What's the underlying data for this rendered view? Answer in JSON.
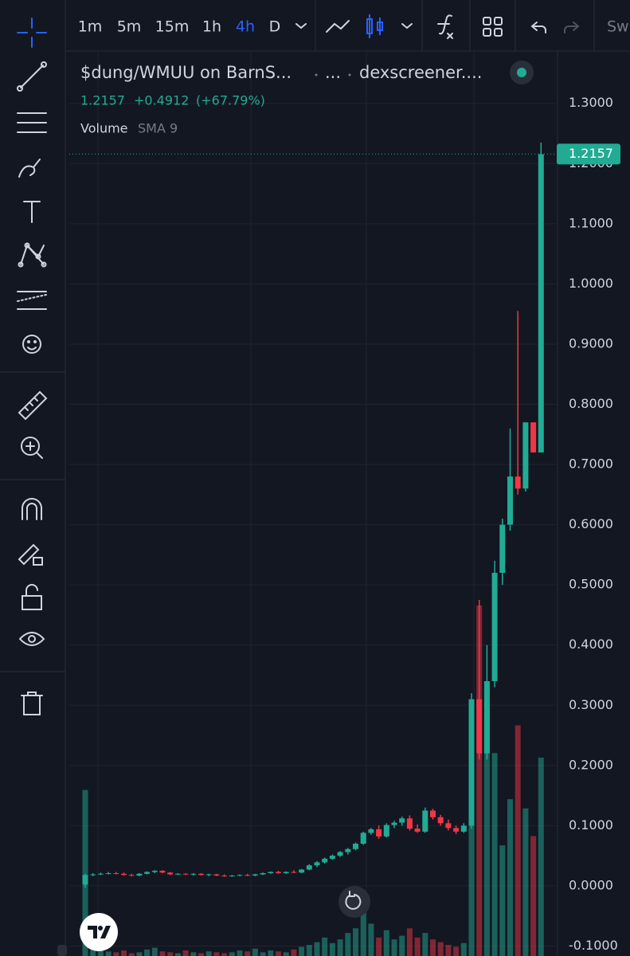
{
  "toolbar": {
    "intervals": [
      "1m",
      "5m",
      "15m",
      "1h",
      "4h",
      "D"
    ],
    "active_interval": 4,
    "overflow": "Sw"
  },
  "legend": {
    "symbol": "$dung/WMUU on BarnS...",
    "dots": "...",
    "source": "dexscreener....",
    "price": "1.2157",
    "change": "+0.4912",
    "change_pct": "(+67.79%)",
    "volume": "Volume",
    "volume_sma": "SMA 9"
  },
  "chart_data": {
    "type": "candlestick",
    "open": [
      0.002,
      0.018,
      0.019,
      0.02,
      0.021,
      0.02,
      0.018,
      0.017,
      0.02,
      0.023,
      0.025,
      0.022,
      0.019,
      0.02,
      0.019,
      0.02,
      0.018,
      0.019,
      0.017,
      0.016,
      0.017,
      0.018,
      0.017,
      0.019,
      0.021,
      0.023,
      0.021,
      0.023,
      0.022,
      0.027,
      0.034,
      0.039,
      0.045,
      0.05,
      0.056,
      0.061,
      0.07,
      0.088,
      0.094,
      0.082,
      0.101,
      0.105,
      0.112,
      0.095,
      0.09,
      0.125,
      0.114,
      0.104,
      0.096,
      0.09,
      0.1,
      0.31,
      0.22,
      0.34,
      0.52,
      0.6,
      0.68,
      0.66,
      0.77,
      0.72
    ],
    "high": [
      0.02,
      0.021,
      0.022,
      0.023,
      0.023,
      0.022,
      0.02,
      0.021,
      0.024,
      0.026,
      0.026,
      0.023,
      0.021,
      0.021,
      0.021,
      0.021,
      0.02,
      0.02,
      0.019,
      0.018,
      0.019,
      0.02,
      0.02,
      0.022,
      0.024,
      0.025,
      0.024,
      0.026,
      0.028,
      0.036,
      0.041,
      0.047,
      0.052,
      0.058,
      0.063,
      0.072,
      0.09,
      0.096,
      0.1,
      0.104,
      0.108,
      0.115,
      0.117,
      0.102,
      0.13,
      0.128,
      0.118,
      0.11,
      0.1,
      0.104,
      0.32,
      0.475,
      0.4,
      0.54,
      0.61,
      0.76,
      0.955,
      0.77,
      0.77,
      1.235
    ],
    "low": [
      -0.003,
      0.016,
      0.018,
      0.019,
      0.019,
      0.017,
      0.016,
      0.016,
      0.019,
      0.021,
      0.021,
      0.018,
      0.018,
      0.018,
      0.017,
      0.017,
      0.016,
      0.016,
      0.015,
      0.015,
      0.016,
      0.016,
      0.016,
      0.018,
      0.02,
      0.02,
      0.02,
      0.021,
      0.021,
      0.026,
      0.031,
      0.037,
      0.043,
      0.048,
      0.052,
      0.059,
      0.068,
      0.085,
      0.078,
      0.08,
      0.096,
      0.1,
      0.092,
      0.088,
      0.088,
      0.11,
      0.1,
      0.092,
      0.086,
      0.088,
      0.095,
      0.21,
      0.21,
      0.33,
      0.5,
      0.59,
      0.65,
      0.655,
      0.72,
      0.72
    ],
    "close": [
      0.018,
      0.019,
      0.02,
      0.021,
      0.02,
      0.018,
      0.017,
      0.02,
      0.023,
      0.025,
      0.022,
      0.019,
      0.02,
      0.019,
      0.02,
      0.018,
      0.019,
      0.017,
      0.016,
      0.017,
      0.018,
      0.017,
      0.019,
      0.021,
      0.023,
      0.021,
      0.023,
      0.022,
      0.027,
      0.034,
      0.039,
      0.045,
      0.05,
      0.056,
      0.061,
      0.07,
      0.088,
      0.094,
      0.082,
      0.101,
      0.105,
      0.112,
      0.095,
      0.09,
      0.125,
      0.114,
      0.104,
      0.096,
      0.09,
      0.1,
      0.31,
      0.22,
      0.34,
      0.52,
      0.6,
      0.68,
      0.66,
      0.77,
      0.72,
      1.2157
    ],
    "volume": [
      180,
      8,
      6,
      5,
      4,
      6,
      3,
      4,
      7,
      9,
      5,
      4,
      3,
      6,
      4,
      3,
      5,
      4,
      3,
      4,
      6,
      5,
      8,
      4,
      6,
      5,
      4,
      7,
      10,
      12,
      15,
      20,
      14,
      18,
      25,
      30,
      55,
      35,
      20,
      28,
      18,
      22,
      30,
      20,
      25,
      18,
      15,
      12,
      10,
      14,
      200,
      380,
      260,
      220,
      120,
      170,
      250,
      160,
      130,
      215
    ],
    "ylim": [
      -0.1166,
      1.387
    ],
    "yticks": [
      {
        "value": 1.3,
        "label": "1.3000"
      },
      {
        "value": 1.2,
        "label": "1.2000"
      },
      {
        "value": 1.1,
        "label": "1.1000"
      },
      {
        "value": 1.0,
        "label": "1.0000"
      },
      {
        "value": 0.9,
        "label": "0.9000"
      },
      {
        "value": 0.8,
        "label": "0.8000"
      },
      {
        "value": 0.7,
        "label": "0.7000"
      },
      {
        "value": 0.6,
        "label": "0.6000"
      },
      {
        "value": 0.5,
        "label": "0.5000"
      },
      {
        "value": 0.4,
        "label": "0.4000"
      },
      {
        "value": 0.3,
        "label": "0.3000"
      },
      {
        "value": 0.2,
        "label": "0.2000"
      },
      {
        "value": 0.1,
        "label": "0.1000"
      },
      {
        "value": 0,
        "label": "0.0000"
      },
      {
        "value": -0.1,
        "label": "-0.1000"
      }
    ],
    "last_price": {
      "value": 1.2157,
      "label": "1.2157"
    },
    "up_color": "#22ab94",
    "down_color": "#f23645",
    "grid": true
  }
}
